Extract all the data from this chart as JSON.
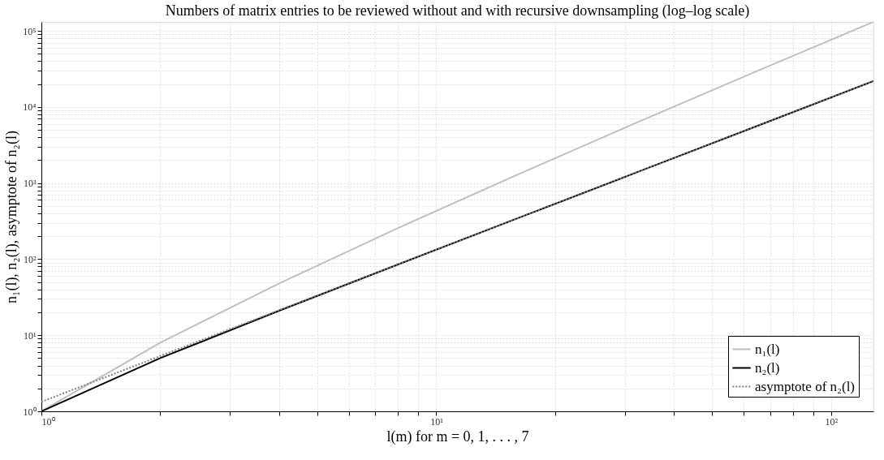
{
  "chart_data": {
    "type": "line",
    "title": "Numbers of matrix entries to be reviewed without and with recursive downsampling (log–log scale)",
    "xlabel": "l(m) for m = 0, 1, . . . , 7",
    "ylabel": "n₁(l), n₂(l), asymptote of n₂(l)",
    "x": [
      1,
      2,
      4,
      8,
      16,
      32,
      64,
      128
    ],
    "series": [
      {
        "name": "n₁(l)",
        "color": "#bfbfbf",
        "line_style": "solid",
        "values": [
          1,
          8,
          48,
          256,
          1280,
          6144,
          28672,
          131072
        ]
      },
      {
        "name": "n₂(l)",
        "color": "#000000",
        "line_style": "solid",
        "values": [
          1,
          5,
          21,
          85,
          341,
          1365,
          5461,
          21845
        ]
      },
      {
        "name": "asymptote of n₂(l)",
        "color": "#808080",
        "line_style": "dotted",
        "values": [
          1.333,
          5.333,
          21.33,
          85.33,
          341.3,
          1365,
          5461,
          21845
        ]
      }
    ],
    "log": "xy",
    "xlim": [
      1,
      128
    ],
    "ylim": [
      1,
      131072
    ],
    "xticks": [
      {
        "value": 1,
        "label": "10⁰"
      },
      {
        "value": 2,
        "label": null
      },
      {
        "value": 3,
        "label": null
      },
      {
        "value": 4,
        "label": null
      },
      {
        "value": 5,
        "label": null
      },
      {
        "value": 6,
        "label": null
      },
      {
        "value": 7,
        "label": null
      },
      {
        "value": 8,
        "label": null
      },
      {
        "value": 9,
        "label": null
      },
      {
        "value": 10,
        "label": "10¹"
      },
      {
        "value": 20,
        "label": null
      },
      {
        "value": 30,
        "label": null
      },
      {
        "value": 40,
        "label": null
      },
      {
        "value": 50,
        "label": null
      },
      {
        "value": 60,
        "label": null
      },
      {
        "value": 70,
        "label": null
      },
      {
        "value": 80,
        "label": null
      },
      {
        "value": 90,
        "label": null
      },
      {
        "value": 100,
        "label": "10²"
      }
    ],
    "yticks": [
      {
        "value": 1,
        "label": "10⁰"
      },
      {
        "value": 2,
        "label": null
      },
      {
        "value": 3,
        "label": null
      },
      {
        "value": 4,
        "label": null
      },
      {
        "value": 5,
        "label": null
      },
      {
        "value": 6,
        "label": null
      },
      {
        "value": 7,
        "label": null
      },
      {
        "value": 8,
        "label": null
      },
      {
        "value": 9,
        "label": null
      },
      {
        "value": 10,
        "label": "10¹"
      },
      {
        "value": 20,
        "label": null
      },
      {
        "value": 30,
        "label": null
      },
      {
        "value": 40,
        "label": null
      },
      {
        "value": 50,
        "label": null
      },
      {
        "value": 60,
        "label": null
      },
      {
        "value": 70,
        "label": null
      },
      {
        "value": 80,
        "label": null
      },
      {
        "value": 90,
        "label": null
      },
      {
        "value": 100,
        "label": "10²"
      },
      {
        "value": 200,
        "label": null
      },
      {
        "value": 300,
        "label": null
      },
      {
        "value": 400,
        "label": null
      },
      {
        "value": 500,
        "label": null
      },
      {
        "value": 600,
        "label": null
      },
      {
        "value": 700,
        "label": null
      },
      {
        "value": 800,
        "label": null
      },
      {
        "value": 900,
        "label": null
      },
      {
        "value": 1000,
        "label": "10³"
      },
      {
        "value": 2000,
        "label": null
      },
      {
        "value": 3000,
        "label": null
      },
      {
        "value": 4000,
        "label": null
      },
      {
        "value": 5000,
        "label": null
      },
      {
        "value": 6000,
        "label": null
      },
      {
        "value": 7000,
        "label": null
      },
      {
        "value": 8000,
        "label": null
      },
      {
        "value": 9000,
        "label": null
      },
      {
        "value": 10000,
        "label": "10⁴"
      },
      {
        "value": 20000,
        "label": null
      },
      {
        "value": 30000,
        "label": null
      },
      {
        "value": 40000,
        "label": null
      },
      {
        "value": 50000,
        "label": null
      },
      {
        "value": 60000,
        "label": null
      },
      {
        "value": 70000,
        "label": null
      },
      {
        "value": 80000,
        "label": null
      },
      {
        "value": 90000,
        "label": null
      },
      {
        "value": 100000,
        "label": "10⁵"
      }
    ],
    "grid": true,
    "legend": "bottom right",
    "marker": "none"
  }
}
